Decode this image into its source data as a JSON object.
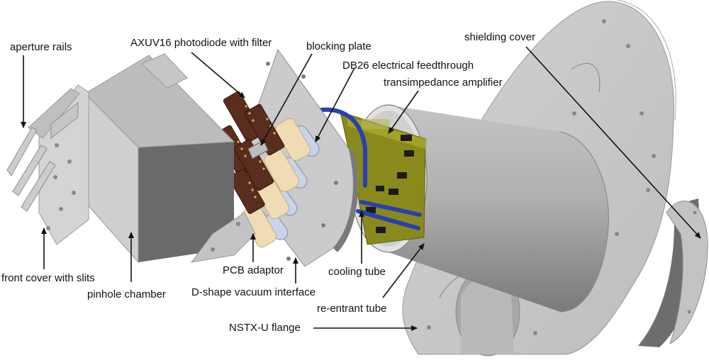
{
  "labels": {
    "aperture_rails": "aperture rails",
    "axuv16": "AXUV16 photodiode with filter",
    "blocking_plate": "blocking plate",
    "db26": "DB26 electrical feedthrough",
    "transimpedance": "transimpedance amplifier",
    "shielding_cover": "shielding cover",
    "front_cover": "front cover with slits",
    "pinhole_chamber": "pinhole chamber",
    "pcb_adaptor": "PCB adaptor",
    "d_shape": "D-shape vacuum interface",
    "cooling_tube": "cooling tube",
    "re_entrant": "re-entrant tube",
    "nstx_flange": "NSTX-U flange"
  },
  "colors": {
    "metal_light": "#d6d6d6",
    "metal_mid": "#b4b4b4",
    "metal_dark": "#6a6a6a",
    "pcb_green": "#8a8a1c",
    "photodiode_brown": "#5a2e1e",
    "adaptor_cream": "#f0dcb4",
    "cooling_blue": "#2a3fb0",
    "arrow": "#111111"
  }
}
